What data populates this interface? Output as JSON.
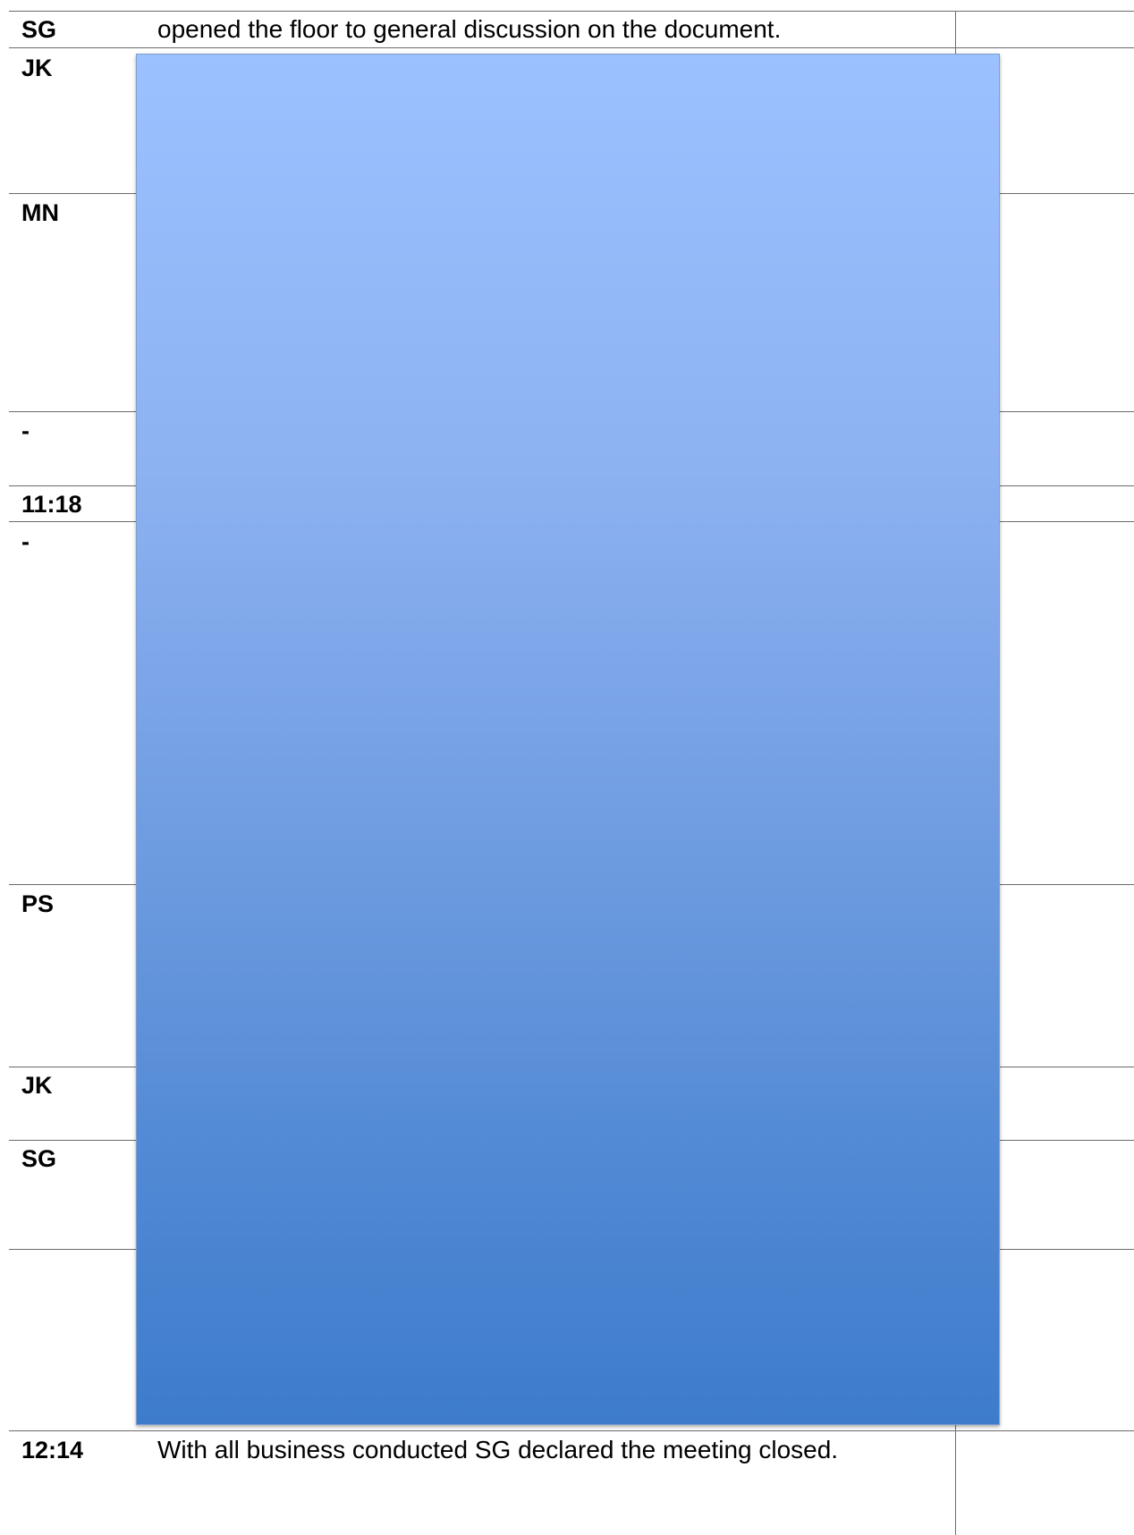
{
  "rows": [
    {
      "speaker": "SG",
      "text": "opened the floor to general discussion on the document."
    },
    {
      "speaker": "JK",
      "text": ""
    },
    {
      "speaker": "MN",
      "text": ""
    },
    {
      "speaker": "-",
      "text": ""
    },
    {
      "speaker": "11:18",
      "text": ""
    },
    {
      "speaker": "-",
      "text": ""
    },
    {
      "speaker": "PS",
      "text": ""
    },
    {
      "speaker": "JK",
      "text": ""
    },
    {
      "speaker": "SG",
      "text": ""
    },
    {
      "speaker": "",
      "text": ""
    },
    {
      "speaker": "12:14",
      "text": "With all business conducted SG declared the meeting closed."
    }
  ],
  "overlay": {
    "description_color_top": "#9cc1ff",
    "description_color_bottom": "#3d7ccb"
  }
}
